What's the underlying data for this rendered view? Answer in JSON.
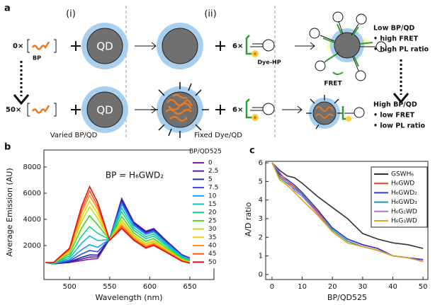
{
  "schematic": {
    "panel_label": "a",
    "step_1": "(i)",
    "step_2": "(ii)",
    "low_count": "0×",
    "high_count": "50×",
    "bp_label": "BP",
    "qd_top": "QD",
    "qd_bottom": "QD",
    "dye_count_top": "6×",
    "dye_count_bottom": "6×",
    "dye_label": "Dye-HP",
    "fret_label": "FRET",
    "low_title": "Low BP/QD",
    "low_item_1": "• high FRET",
    "low_item_2": "• high PL ratio",
    "high_title": "High BP/QD",
    "high_item_1": "• low FRET",
    "high_item_2": "• low PL ratio",
    "left_caption": "Varied BP/QD",
    "middle_caption": "Fixed Dye/QD"
  },
  "chart_data": [
    {
      "type": "line",
      "panel_label": "b",
      "annotation": "BP = H₆GWD₂",
      "xlabel": "Wavelength (nm)",
      "ylabel": "Average Emission (AU)",
      "legend_title": "BP/QD525",
      "x": [
        470,
        480,
        500,
        515,
        525,
        535,
        550,
        565,
        580,
        595,
        605,
        620,
        640,
        660,
        680
      ],
      "xlim": [
        468,
        680
      ],
      "ylim": [
        -600,
        9300
      ],
      "xticks": [
        500,
        550,
        600,
        650
      ],
      "yticks": [
        2000,
        4000,
        6000,
        8000
      ],
      "series": [
        {
          "name": "0",
          "color": "#8a1aa8",
          "values": [
            700,
            600,
            700,
            850,
            950,
            1000,
            2500,
            5600,
            3800,
            3100,
            3300,
            2400,
            1300,
            800,
            550
          ]
        },
        {
          "name": "2.5",
          "color": "#5a12b8",
          "values": [
            700,
            600,
            730,
            970,
            1120,
            1130,
            2500,
            5530,
            3760,
            3060,
            3260,
            2370,
            1290,
            790,
            540
          ]
        },
        {
          "name": "5",
          "color": "#222a9c",
          "values": [
            700,
            610,
            770,
            1100,
            1280,
            1260,
            2490,
            5460,
            3720,
            3020,
            3220,
            2350,
            1270,
            780,
            540
          ]
        },
        {
          "name": "7.5",
          "color": "#2a4ee8",
          "values": [
            700,
            610,
            830,
            1350,
            1620,
            1520,
            2490,
            5320,
            3630,
            2940,
            3140,
            2290,
            1240,
            760,
            530
          ]
        },
        {
          "name": "10",
          "color": "#1a9cf0",
          "values": [
            700,
            620,
            920,
            1680,
            2060,
            1860,
            2480,
            5140,
            3520,
            2840,
            3040,
            2220,
            1200,
            740,
            510
          ]
        },
        {
          "name": "15",
          "color": "#10c4c4",
          "values": [
            700,
            630,
            1050,
            2180,
            2730,
            2380,
            2470,
            4860,
            3350,
            2680,
            2880,
            2110,
            1140,
            700,
            490
          ]
        },
        {
          "name": "20",
          "color": "#14d488",
          "values": [
            700,
            650,
            1200,
            2720,
            3450,
            2940,
            2460,
            4570,
            3170,
            2520,
            2720,
            2000,
            1080,
            670,
            460
          ]
        },
        {
          "name": "25",
          "color": "#4cd41c",
          "values": [
            700,
            660,
            1360,
            3340,
            4280,
            3580,
            2440,
            4220,
            2960,
            2320,
            2520,
            1860,
            1000,
            620,
            430
          ]
        },
        {
          "name": "30",
          "color": "#c2e010",
          "values": [
            700,
            670,
            1490,
            3840,
            4950,
            4100,
            2430,
            3940,
            2790,
            2160,
            2360,
            1750,
            940,
            580,
            410
          ]
        },
        {
          "name": "35",
          "color": "#f4d010",
          "values": [
            700,
            680,
            1580,
            4170,
            5390,
            4440,
            2420,
            3760,
            2680,
            2060,
            2260,
            1680,
            900,
            560,
            390
          ]
        },
        {
          "name": "40",
          "color": "#ff9410",
          "values": [
            700,
            690,
            1670,
            4500,
            5830,
            4780,
            2410,
            3580,
            2570,
            1960,
            2160,
            1610,
            860,
            540,
            370
          ]
        },
        {
          "name": "45",
          "color": "#ff5418",
          "values": [
            700,
            690,
            1730,
            4750,
            6170,
            5040,
            2410,
            3440,
            2480,
            1880,
            2080,
            1550,
            830,
            520,
            360
          ]
        },
        {
          "name": "50",
          "color": "#e0101a",
          "values": [
            700,
            700,
            1800,
            5000,
            6500,
            5300,
            2400,
            3300,
            2400,
            1800,
            2000,
            1500,
            800,
            500,
            350
          ]
        }
      ]
    },
    {
      "type": "line",
      "panel_label": "c",
      "xlabel": "BP/QD525",
      "ylabel": "A/D ratio",
      "x": [
        0,
        2.5,
        5,
        7.5,
        10,
        15,
        20,
        25,
        30,
        35,
        40,
        45,
        50
      ],
      "xlim": [
        -2.1,
        51.6
      ],
      "ylim": [
        -0.27,
        6.08
      ],
      "xticks": [
        0,
        10,
        20,
        30,
        40,
        50
      ],
      "yticks": [
        0,
        1,
        2,
        3,
        4,
        5,
        6
      ],
      "series": [
        {
          "name": "GSWH₆",
          "color": "#333333",
          "values": [
            6.0,
            5.6,
            5.3,
            5.2,
            4.9,
            4.2,
            3.6,
            3.0,
            2.2,
            1.9,
            1.7,
            1.6,
            1.4
          ]
        },
        {
          "name": "H₆GWD",
          "color": "#e8401c",
          "values": [
            6.0,
            5.3,
            5.0,
            4.7,
            4.3,
            3.4,
            2.5,
            1.9,
            1.6,
            1.4,
            1.0,
            0.9,
            0.8
          ]
        },
        {
          "name": "H₆GWD₂",
          "color": "#2a3ccc",
          "values": [
            6.0,
            5.4,
            5.1,
            4.8,
            4.4,
            3.5,
            2.5,
            1.9,
            1.6,
            1.4,
            1.0,
            0.9,
            0.8
          ]
        },
        {
          "name": "H₆GWD₃",
          "color": "#1aa0a0",
          "values": [
            6.0,
            5.2,
            4.9,
            4.6,
            4.3,
            3.3,
            2.4,
            1.8,
            1.5,
            1.3,
            1.0,
            0.9,
            0.7
          ]
        },
        {
          "name": "H₆G₂WD",
          "color": "#b070d8",
          "values": [
            6.0,
            5.5,
            5.0,
            4.5,
            4.2,
            3.3,
            2.3,
            1.7,
            1.5,
            1.3,
            1.0,
            0.9,
            0.7
          ]
        },
        {
          "name": "H₆G₃WD",
          "color": "#e0a020",
          "values": [
            6.0,
            5.1,
            4.8,
            4.4,
            4.0,
            3.2,
            2.3,
            1.7,
            1.5,
            1.3,
            1.0,
            0.9,
            0.7
          ]
        }
      ]
    }
  ]
}
